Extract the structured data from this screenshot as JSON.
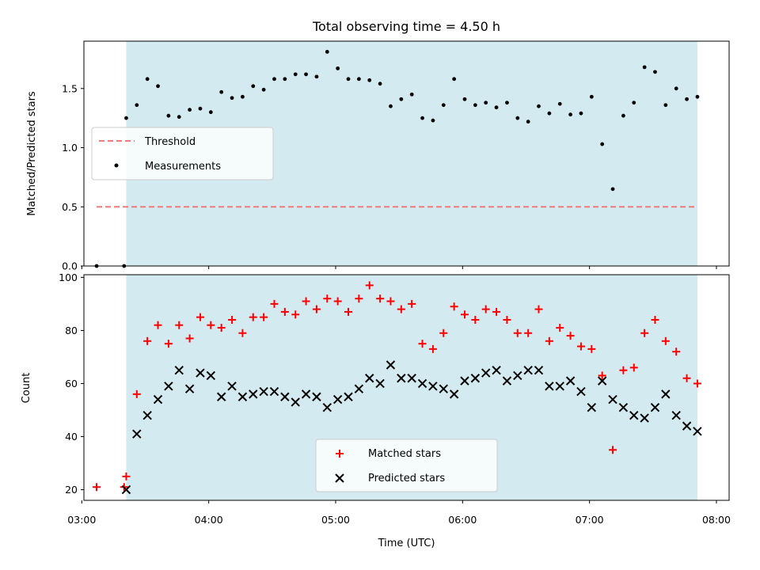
{
  "title": "Total observing time = 4.50 h",
  "chart_data": [
    {
      "type": "scatter",
      "ylabel": "Matched/Predicted stars",
      "ylim": [
        0,
        1.9
      ],
      "yticks": [
        0.0,
        0.5,
        1.0,
        1.5
      ],
      "ytick_labels": [
        "0.0",
        "0.5",
        "1.0",
        "1.5"
      ],
      "xlim": [
        "03:01",
        "08:06"
      ],
      "observing_window": [
        "03:21",
        "07:51"
      ],
      "observing_window_color": "#d3eaf0",
      "threshold": {
        "name": "Threshold",
        "value": 0.5,
        "from": "03:07",
        "to": "07:51",
        "color": "#f07b78"
      },
      "legend": {
        "placement": "center-left",
        "entries": [
          "Threshold",
          "Measurements"
        ]
      },
      "series": [
        {
          "name": "Measurements",
          "color": "#000000",
          "x": [
            "03:07",
            "03:20",
            "03:21",
            "03:26",
            "03:31",
            "03:36",
            "03:41",
            "03:46",
            "03:51",
            "03:56",
            "04:01",
            "04:06",
            "04:11",
            "04:16",
            "04:21",
            "04:26",
            "04:31",
            "04:36",
            "04:41",
            "04:46",
            "04:51",
            "04:56",
            "05:01",
            "05:06",
            "05:11",
            "05:16",
            "05:21",
            "05:26",
            "05:31",
            "05:36",
            "05:41",
            "05:46",
            "05:51",
            "05:56",
            "06:01",
            "06:06",
            "06:11",
            "06:16",
            "06:21",
            "06:26",
            "06:31",
            "06:36",
            "06:41",
            "06:46",
            "06:51",
            "06:56",
            "07:01",
            "07:06",
            "07:11",
            "07:16",
            "07:21",
            "07:26",
            "07:31",
            "07:36",
            "07:41",
            "07:46",
            "07:51"
          ],
          "y": [
            0.0,
            0.0,
            1.25,
            1.36,
            1.58,
            1.52,
            1.27,
            1.26,
            1.32,
            1.33,
            1.3,
            1.47,
            1.42,
            1.43,
            1.52,
            1.49,
            1.58,
            1.58,
            1.62,
            1.62,
            1.6,
            1.81,
            1.67,
            1.58,
            1.58,
            1.57,
            1.54,
            1.35,
            1.41,
            1.45,
            1.25,
            1.23,
            1.36,
            1.58,
            1.41,
            1.36,
            1.38,
            1.34,
            1.38,
            1.25,
            1.22,
            1.35,
            1.29,
            1.37,
            1.28,
            1.29,
            1.43,
            1.03,
            0.65,
            1.27,
            1.38,
            1.68,
            1.64,
            1.36,
            1.5,
            1.41,
            1.43
          ]
        }
      ]
    },
    {
      "type": "scatter",
      "ylabel": "Count",
      "xlabel": "Time (UTC)",
      "ylim": [
        16,
        101
      ],
      "yticks": [
        20,
        40,
        60,
        80,
        100
      ],
      "ytick_labels": [
        "20",
        "40",
        "60",
        "80",
        "100"
      ],
      "xlim": [
        "03:01",
        "08:06"
      ],
      "xticks": [
        "03:00",
        "04:00",
        "05:00",
        "06:00",
        "07:00",
        "08:00"
      ],
      "xtick_labels": [
        "03:00",
        "04:00",
        "05:00",
        "06:00",
        "07:00",
        "08:00"
      ],
      "observing_window": [
        "03:21",
        "07:51"
      ],
      "observing_window_color": "#d3eaf0",
      "legend": {
        "placement": "lower-center",
        "entries": [
          "Matched stars",
          "Predicted stars"
        ]
      },
      "series": [
        {
          "name": "Matched stars",
          "marker": "+",
          "color": "#ff0000",
          "x": [
            "03:07",
            "03:20",
            "03:21",
            "03:26",
            "03:31",
            "03:36",
            "03:41",
            "03:46",
            "03:51",
            "03:56",
            "04:01",
            "04:06",
            "04:11",
            "04:16",
            "04:21",
            "04:26",
            "04:31",
            "04:36",
            "04:41",
            "04:46",
            "04:51",
            "04:56",
            "05:01",
            "05:06",
            "05:11",
            "05:16",
            "05:21",
            "05:26",
            "05:31",
            "05:36",
            "05:41",
            "05:46",
            "05:51",
            "05:56",
            "06:01",
            "06:06",
            "06:11",
            "06:16",
            "06:21",
            "06:26",
            "06:31",
            "06:36",
            "06:41",
            "06:46",
            "06:51",
            "06:56",
            "07:01",
            "07:06",
            "07:11",
            "07:16",
            "07:21",
            "07:26",
            "07:31",
            "07:36",
            "07:41",
            "07:46",
            "07:51"
          ],
          "y": [
            21,
            21,
            25,
            56,
            76,
            82,
            75,
            82,
            77,
            85,
            82,
            81,
            84,
            79,
            85,
            85,
            90,
            87,
            86,
            91,
            88,
            92,
            91,
            87,
            92,
            97,
            92,
            91,
            88,
            90,
            75,
            73,
            79,
            89,
            86,
            84,
            88,
            87,
            84,
            79,
            79,
            88,
            76,
            81,
            78,
            74,
            73,
            63,
            35,
            65,
            66,
            79,
            84,
            76,
            72,
            62,
            60
          ]
        },
        {
          "name": "Predicted stars",
          "marker": "x",
          "color": "#000000",
          "x": [
            "03:21",
            "03:26",
            "03:31",
            "03:36",
            "03:41",
            "03:46",
            "03:51",
            "03:56",
            "04:01",
            "04:06",
            "04:11",
            "04:16",
            "04:21",
            "04:26",
            "04:31",
            "04:36",
            "04:41",
            "04:46",
            "04:51",
            "04:56",
            "05:01",
            "05:06",
            "05:11",
            "05:16",
            "05:21",
            "05:26",
            "05:31",
            "05:36",
            "05:41",
            "05:46",
            "05:51",
            "05:56",
            "06:01",
            "06:06",
            "06:11",
            "06:16",
            "06:21",
            "06:26",
            "06:31",
            "06:36",
            "06:41",
            "06:46",
            "06:51",
            "06:56",
            "07:01",
            "07:06",
            "07:11",
            "07:16",
            "07:21",
            "07:26",
            "07:31",
            "07:36",
            "07:41",
            "07:46",
            "07:51"
          ],
          "y": [
            20,
            41,
            48,
            54,
            59,
            65,
            58,
            64,
            63,
            55,
            59,
            55,
            56,
            57,
            57,
            55,
            53,
            56,
            55,
            51,
            54,
            55,
            58,
            62,
            60,
            67,
            62,
            62,
            60,
            59,
            58,
            56,
            61,
            62,
            64,
            65,
            61,
            63,
            65,
            65,
            59,
            59,
            61,
            57,
            51,
            61,
            54,
            51,
            48,
            47,
            51,
            56,
            48,
            44,
            42
          ]
        }
      ]
    }
  ]
}
